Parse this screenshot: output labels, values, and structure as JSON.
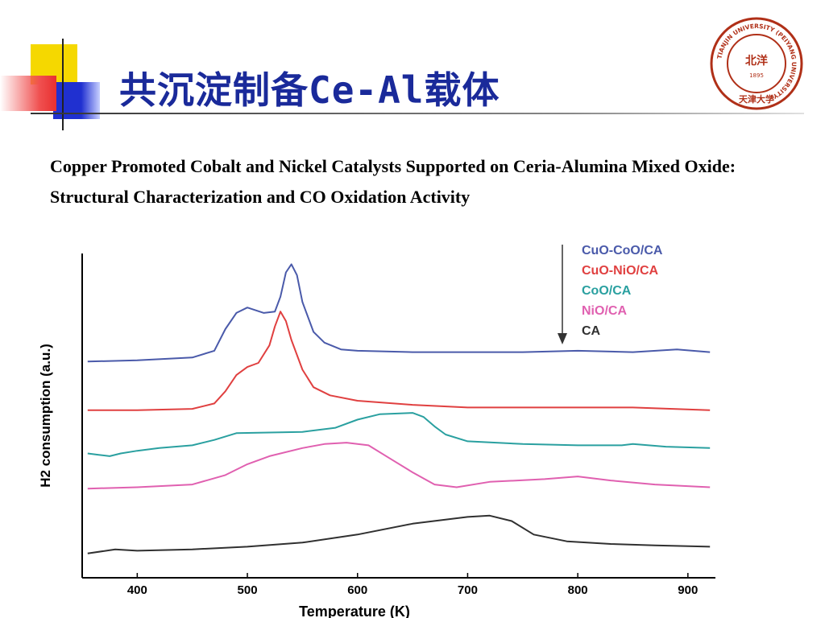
{
  "slide": {
    "title": "共沉淀制备Ce-Al载体",
    "paper_title": "Copper Promoted Cobalt and Nickel Catalysts Supported on Ceria-Alumina Mixed Oxide: Structural Characterization and CO Oxidation Activity"
  },
  "logo": {
    "ring_text": "TIANJIN UNIVERSITY (PEIYANG UNIVERSITY)",
    "center_text": "北洋",
    "year": "1895",
    "bottom_text": "天津大学",
    "color": "#b03018"
  },
  "colors": {
    "title": "#1a2a9a",
    "deco_yellow": "#f5d800",
    "deco_blue": "#2030d0",
    "deco_red": "#e83030"
  },
  "chart_data": {
    "type": "line",
    "xlabel": "Temperature (K)",
    "ylabel": "H2 consumption (a.u.)",
    "xlim": [
      350,
      925
    ],
    "ylim": [
      0,
      12
    ],
    "x_ticks": [
      400,
      500,
      600,
      700,
      800,
      900
    ],
    "legend_position": "top-right",
    "legend_arrow": "down",
    "series": [
      {
        "name": "CuO-CoO/CA",
        "color": "#4a5aaa",
        "points": [
          [
            355,
            8.0
          ],
          [
            400,
            8.05
          ],
          [
            450,
            8.15
          ],
          [
            470,
            8.4
          ],
          [
            480,
            9.2
          ],
          [
            490,
            9.8
          ],
          [
            500,
            10.0
          ],
          [
            515,
            9.8
          ],
          [
            525,
            9.85
          ],
          [
            530,
            10.4
          ],
          [
            535,
            11.3
          ],
          [
            540,
            11.6
          ],
          [
            545,
            11.2
          ],
          [
            550,
            10.2
          ],
          [
            560,
            9.1
          ],
          [
            570,
            8.7
          ],
          [
            585,
            8.45
          ],
          [
            600,
            8.4
          ],
          [
            650,
            8.35
          ],
          [
            700,
            8.35
          ],
          [
            750,
            8.35
          ],
          [
            800,
            8.4
          ],
          [
            850,
            8.35
          ],
          [
            890,
            8.45
          ],
          [
            920,
            8.35
          ]
        ]
      },
      {
        "name": "CuO-NiO/CA",
        "color": "#e04040",
        "points": [
          [
            355,
            6.2
          ],
          [
            400,
            6.2
          ],
          [
            450,
            6.25
          ],
          [
            470,
            6.45
          ],
          [
            480,
            6.9
          ],
          [
            490,
            7.5
          ],
          [
            500,
            7.8
          ],
          [
            510,
            7.95
          ],
          [
            520,
            8.6
          ],
          [
            525,
            9.3
          ],
          [
            530,
            9.85
          ],
          [
            535,
            9.5
          ],
          [
            540,
            8.8
          ],
          [
            550,
            7.7
          ],
          [
            560,
            7.05
          ],
          [
            575,
            6.75
          ],
          [
            600,
            6.55
          ],
          [
            650,
            6.4
          ],
          [
            700,
            6.3
          ],
          [
            750,
            6.3
          ],
          [
            800,
            6.3
          ],
          [
            850,
            6.3
          ],
          [
            920,
            6.2
          ]
        ]
      },
      {
        "name": "CoO/CA",
        "color": "#2aa0a0",
        "points": [
          [
            355,
            4.6
          ],
          [
            365,
            4.55
          ],
          [
            375,
            4.5
          ],
          [
            385,
            4.6
          ],
          [
            400,
            4.7
          ],
          [
            420,
            4.8
          ],
          [
            450,
            4.9
          ],
          [
            470,
            5.1
          ],
          [
            490,
            5.35
          ],
          [
            550,
            5.4
          ],
          [
            580,
            5.55
          ],
          [
            600,
            5.85
          ],
          [
            620,
            6.05
          ],
          [
            650,
            6.1
          ],
          [
            660,
            5.95
          ],
          [
            670,
            5.6
          ],
          [
            680,
            5.3
          ],
          [
            700,
            5.05
          ],
          [
            750,
            4.95
          ],
          [
            800,
            4.9
          ],
          [
            840,
            4.9
          ],
          [
            850,
            4.95
          ],
          [
            880,
            4.85
          ],
          [
            920,
            4.8
          ]
        ]
      },
      {
        "name": "NiO/CA",
        "color": "#e060b0",
        "points": [
          [
            355,
            3.3
          ],
          [
            400,
            3.35
          ],
          [
            450,
            3.45
          ],
          [
            480,
            3.8
          ],
          [
            500,
            4.2
          ],
          [
            520,
            4.5
          ],
          [
            550,
            4.8
          ],
          [
            570,
            4.95
          ],
          [
            590,
            5.0
          ],
          [
            610,
            4.9
          ],
          [
            630,
            4.4
          ],
          [
            650,
            3.9
          ],
          [
            670,
            3.45
          ],
          [
            690,
            3.35
          ],
          [
            720,
            3.55
          ],
          [
            770,
            3.65
          ],
          [
            800,
            3.75
          ],
          [
            830,
            3.6
          ],
          [
            870,
            3.45
          ],
          [
            920,
            3.35
          ]
        ]
      },
      {
        "name": "CA",
        "color": "#303030",
        "points": [
          [
            355,
            0.9
          ],
          [
            380,
            1.05
          ],
          [
            400,
            1.0
          ],
          [
            450,
            1.05
          ],
          [
            500,
            1.15
          ],
          [
            550,
            1.3
          ],
          [
            600,
            1.6
          ],
          [
            650,
            2.0
          ],
          [
            700,
            2.25
          ],
          [
            720,
            2.3
          ],
          [
            740,
            2.1
          ],
          [
            760,
            1.6
          ],
          [
            790,
            1.35
          ],
          [
            830,
            1.25
          ],
          [
            870,
            1.2
          ],
          [
            920,
            1.15
          ]
        ]
      }
    ]
  }
}
